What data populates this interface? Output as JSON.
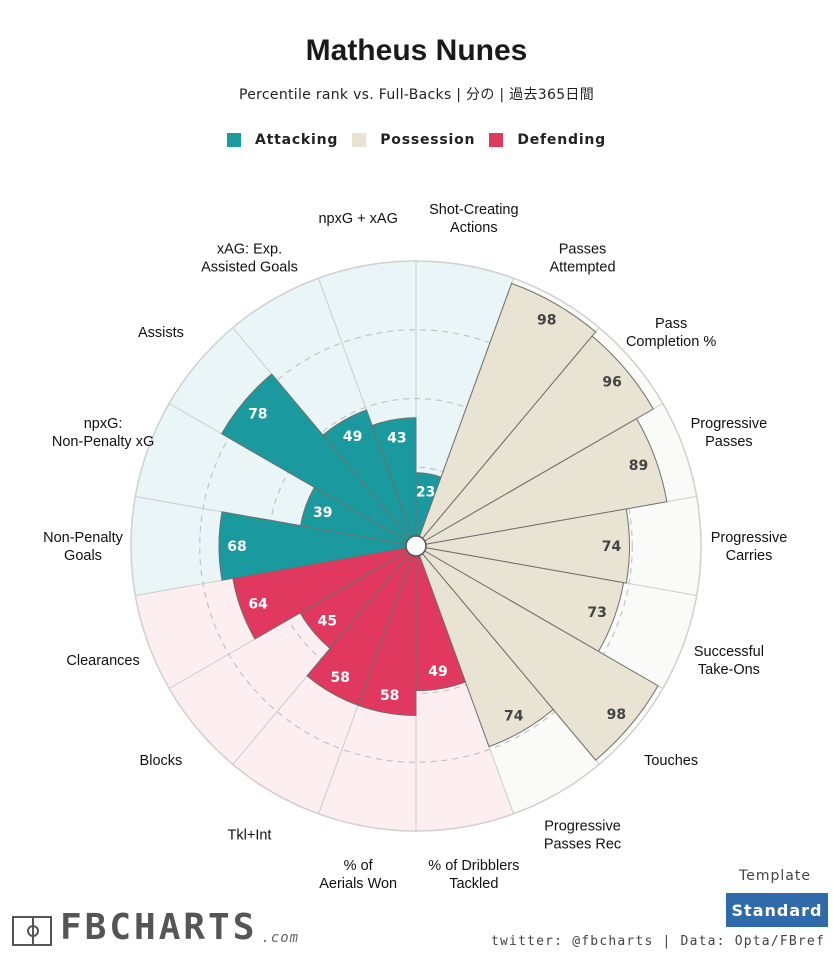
{
  "title": "Matheus Nunes",
  "subtitle": "Percentile rank vs. Full-Backs | 分の | 過去365日間",
  "legend": [
    {
      "label": "Attacking",
      "color": "#1a9a9e"
    },
    {
      "label": "Possession",
      "color": "#e8e3d3"
    },
    {
      "label": "Defending",
      "color": "#e0385e"
    }
  ],
  "template": {
    "label": "Template",
    "button": "Standard"
  },
  "footer": {
    "credit": "twitter: @fbcharts | Data: Opta/FBref",
    "logo": "FBCHARTS",
    "logo_suffix": ".com"
  },
  "chart_data": {
    "type": "pizza",
    "title": "Matheus Nunes",
    "range": [
      0,
      100
    ],
    "rings": [
      25,
      50,
      75
    ],
    "categories": [
      {
        "name": "Attacking",
        "color": "#1a9a9e",
        "bg": "#e9f5f6"
      },
      {
        "name": "Possession",
        "color": "#e8e3d3",
        "bg": "#fafaf8"
      },
      {
        "name": "Defending",
        "color": "#e0385e",
        "bg": "#fdeef1"
      }
    ],
    "metrics": [
      {
        "label": "Shot-Creating Actions",
        "value": 23,
        "category": "Attacking"
      },
      {
        "label": "Passes Attempted",
        "value": 98,
        "category": "Possession"
      },
      {
        "label": "Pass Completion %",
        "value": 96,
        "category": "Possession"
      },
      {
        "label": "Progressive Passes",
        "value": 89,
        "category": "Possession"
      },
      {
        "label": "Progressive Carries",
        "value": 74,
        "category": "Possession"
      },
      {
        "label": "Successful Take-Ons",
        "value": 73,
        "category": "Possession"
      },
      {
        "label": "Touches",
        "value": 98,
        "category": "Possession"
      },
      {
        "label": "Progressive Passes Rec",
        "value": 74,
        "category": "Possession"
      },
      {
        "label": "% of Dribblers Tackled",
        "value": 49,
        "category": "Defending"
      },
      {
        "label": "% of Aerials Won",
        "value": 58,
        "category": "Defending"
      },
      {
        "label": "Tkl+Int",
        "value": 58,
        "category": "Defending"
      },
      {
        "label": "Blocks",
        "value": 45,
        "category": "Defending"
      },
      {
        "label": "Clearances",
        "value": 64,
        "category": "Defending"
      },
      {
        "label": "Non-Penalty Goals",
        "value": 68,
        "category": "Attacking"
      },
      {
        "label": "npxG: Non-Penalty xG",
        "value": 39,
        "category": "Attacking"
      },
      {
        "label": "Assists",
        "value": 78,
        "category": "Attacking"
      },
      {
        "label": "xAG: Exp. Assisted Goals",
        "value": 49,
        "category": "Attacking"
      },
      {
        "label": "npxG + xAG",
        "value": 43,
        "category": "Attacking"
      }
    ]
  }
}
